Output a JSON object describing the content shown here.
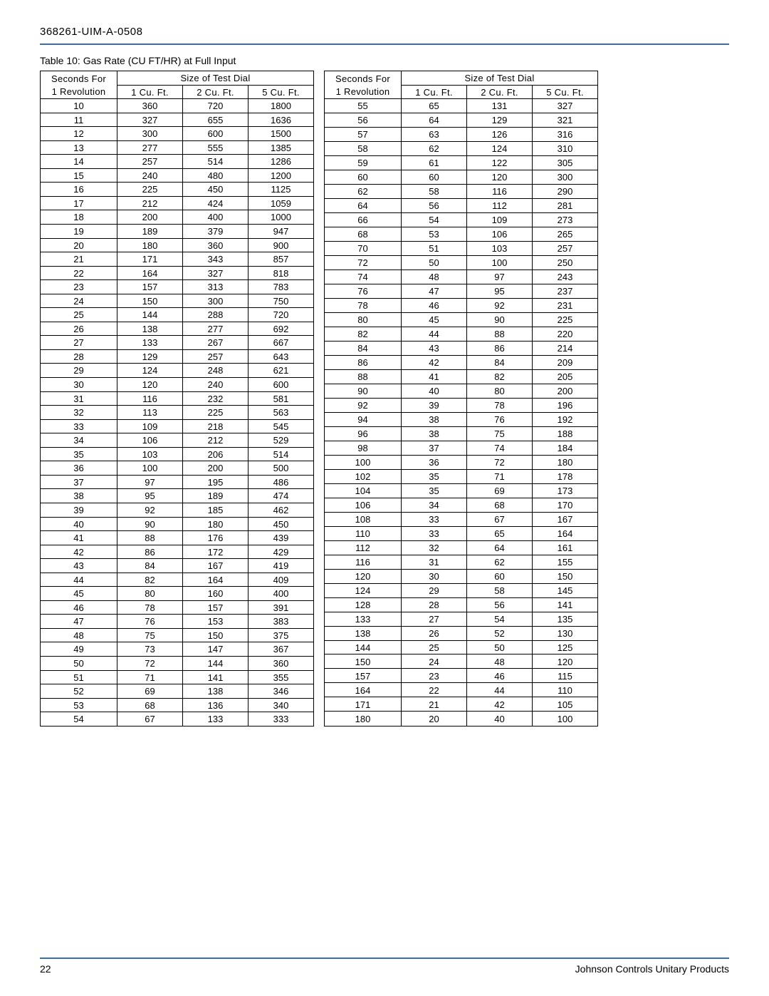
{
  "doc_number": "368261-UIM-A-0508",
  "caption": "Table 10: Gas Rate (CU FT/HR) at Full Input",
  "headers": {
    "seconds_line1": "Seconds For",
    "seconds_line2": "1 Revolution",
    "size_group": "Size of Test Dial",
    "c1": "1 Cu. Ft.",
    "c2": "2 Cu. Ft.",
    "c5": "5 Cu. Ft."
  },
  "left_rows": [
    [
      "10",
      "360",
      "720",
      "1800"
    ],
    [
      "11",
      "327",
      "655",
      "1636"
    ],
    [
      "12",
      "300",
      "600",
      "1500"
    ],
    [
      "13",
      "277",
      "555",
      "1385"
    ],
    [
      "14",
      "257",
      "514",
      "1286"
    ],
    [
      "15",
      "240",
      "480",
      "1200"
    ],
    [
      "16",
      "225",
      "450",
      "1125"
    ],
    [
      "17",
      "212",
      "424",
      "1059"
    ],
    [
      "18",
      "200",
      "400",
      "1000"
    ],
    [
      "19",
      "189",
      "379",
      "947"
    ],
    [
      "20",
      "180",
      "360",
      "900"
    ],
    [
      "21",
      "171",
      "343",
      "857"
    ],
    [
      "22",
      "164",
      "327",
      "818"
    ],
    [
      "23",
      "157",
      "313",
      "783"
    ],
    [
      "24",
      "150",
      "300",
      "750"
    ],
    [
      "25",
      "144",
      "288",
      "720"
    ],
    [
      "26",
      "138",
      "277",
      "692"
    ],
    [
      "27",
      "133",
      "267",
      "667"
    ],
    [
      "28",
      "129",
      "257",
      "643"
    ],
    [
      "29",
      "124",
      "248",
      "621"
    ],
    [
      "30",
      "120",
      "240",
      "600"
    ],
    [
      "31",
      "116",
      "232",
      "581"
    ],
    [
      "32",
      "113",
      "225",
      "563"
    ],
    [
      "33",
      "109",
      "218",
      "545"
    ],
    [
      "34",
      "106",
      "212",
      "529"
    ],
    [
      "35",
      "103",
      "206",
      "514"
    ],
    [
      "36",
      "100",
      "200",
      "500"
    ],
    [
      "37",
      "97",
      "195",
      "486"
    ],
    [
      "38",
      "95",
      "189",
      "474"
    ],
    [
      "39",
      "92",
      "185",
      "462"
    ],
    [
      "40",
      "90",
      "180",
      "450"
    ],
    [
      "41",
      "88",
      "176",
      "439"
    ],
    [
      "42",
      "86",
      "172",
      "429"
    ],
    [
      "43",
      "84",
      "167",
      "419"
    ],
    [
      "44",
      "82",
      "164",
      "409"
    ],
    [
      "45",
      "80",
      "160",
      "400"
    ],
    [
      "46",
      "78",
      "157",
      "391"
    ],
    [
      "47",
      "76",
      "153",
      "383"
    ],
    [
      "48",
      "75",
      "150",
      "375"
    ],
    [
      "49",
      "73",
      "147",
      "367"
    ],
    [
      "50",
      "72",
      "144",
      "360"
    ],
    [
      "51",
      "71",
      "141",
      "355"
    ],
    [
      "52",
      "69",
      "138",
      "346"
    ],
    [
      "53",
      "68",
      "136",
      "340"
    ],
    [
      "54",
      "67",
      "133",
      "333"
    ]
  ],
  "right_rows": [
    [
      "55",
      "65",
      "131",
      "327"
    ],
    [
      "56",
      "64",
      "129",
      "321"
    ],
    [
      "57",
      "63",
      "126",
      "316"
    ],
    [
      "58",
      "62",
      "124",
      "310"
    ],
    [
      "59",
      "61",
      "122",
      "305"
    ],
    [
      "60",
      "60",
      "120",
      "300"
    ],
    [
      "62",
      "58",
      "116",
      "290"
    ],
    [
      "64",
      "56",
      "112",
      "281"
    ],
    [
      "66",
      "54",
      "109",
      "273"
    ],
    [
      "68",
      "53",
      "106",
      "265"
    ],
    [
      "70",
      "51",
      "103",
      "257"
    ],
    [
      "72",
      "50",
      "100",
      "250"
    ],
    [
      "74",
      "48",
      "97",
      "243"
    ],
    [
      "76",
      "47",
      "95",
      "237"
    ],
    [
      "78",
      "46",
      "92",
      "231"
    ],
    [
      "80",
      "45",
      "90",
      "225"
    ],
    [
      "82",
      "44",
      "88",
      "220"
    ],
    [
      "84",
      "43",
      "86",
      "214"
    ],
    [
      "86",
      "42",
      "84",
      "209"
    ],
    [
      "88",
      "41",
      "82",
      "205"
    ],
    [
      "90",
      "40",
      "80",
      "200"
    ],
    [
      "92",
      "39",
      "78",
      "196"
    ],
    [
      "94",
      "38",
      "76",
      "192"
    ],
    [
      "96",
      "38",
      "75",
      "188"
    ],
    [
      "98",
      "37",
      "74",
      "184"
    ],
    [
      "100",
      "36",
      "72",
      "180"
    ],
    [
      "102",
      "35",
      "71",
      "178"
    ],
    [
      "104",
      "35",
      "69",
      "173"
    ],
    [
      "106",
      "34",
      "68",
      "170"
    ],
    [
      "108",
      "33",
      "67",
      "167"
    ],
    [
      "110",
      "33",
      "65",
      "164"
    ],
    [
      "112",
      "32",
      "64",
      "161"
    ],
    [
      "116",
      "31",
      "62",
      "155"
    ],
    [
      "120",
      "30",
      "60",
      "150"
    ],
    [
      "124",
      "29",
      "58",
      "145"
    ],
    [
      "128",
      "28",
      "56",
      "141"
    ],
    [
      "133",
      "27",
      "54",
      "135"
    ],
    [
      "138",
      "26",
      "52",
      "130"
    ],
    [
      "144",
      "25",
      "50",
      "125"
    ],
    [
      "150",
      "24",
      "48",
      "120"
    ],
    [
      "157",
      "23",
      "46",
      "115"
    ],
    [
      "164",
      "22",
      "44",
      "110"
    ],
    [
      "171",
      "21",
      "42",
      "105"
    ],
    [
      "180",
      "20",
      "40",
      "100"
    ]
  ],
  "footer": {
    "page_number": "22",
    "company": "Johnson Controls Unitary Products"
  },
  "colors": {
    "rule": "#3a6bb5",
    "text": "#000000",
    "bg": "#ffffff"
  }
}
